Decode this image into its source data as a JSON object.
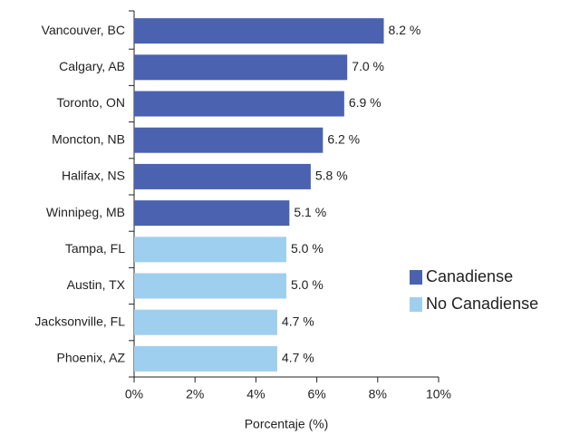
{
  "chart_data": {
    "type": "barh",
    "categories": [
      "Vancouver, BC",
      "Calgary, AB",
      "Toronto, ON",
      "Moncton, NB",
      "Halifax, NS",
      "Winnipeg, MB",
      "Tampa, FL",
      "Austin, TX",
      "Jacksonville, FL",
      "Phoenix, AZ"
    ],
    "series": [
      {
        "name": "Canadiense",
        "color": "#4a62b0",
        "values": [
          8.2,
          7.0,
          6.9,
          6.2,
          5.8,
          5.1,
          null,
          null,
          null,
          null
        ],
        "value_labels": [
          "8.2 %",
          "7.0 %",
          "6.9 %",
          "6.2 %",
          "5.8 %",
          "5.1 %",
          null,
          null,
          null,
          null
        ]
      },
      {
        "name": "No Canadiense",
        "color": "#9fcfee",
        "values": [
          null,
          null,
          null,
          null,
          null,
          null,
          5.0,
          5.0,
          4.7,
          4.7
        ],
        "value_labels": [
          null,
          null,
          null,
          null,
          null,
          null,
          "5.0 %",
          "5.0 %",
          "4.7 %",
          "4.7 %"
        ]
      }
    ],
    "xlabel": "Porcentaje (%)",
    "xlim": [
      0,
      10
    ],
    "xticks": [
      {
        "value": 0,
        "label": "0%"
      },
      {
        "value": 2,
        "label": "2%"
      },
      {
        "value": 4,
        "label": "4%"
      },
      {
        "value": 6,
        "label": "6%"
      },
      {
        "value": 8,
        "label": "8%"
      },
      {
        "value": 10,
        "label": "10%"
      }
    ],
    "legend": "right"
  }
}
